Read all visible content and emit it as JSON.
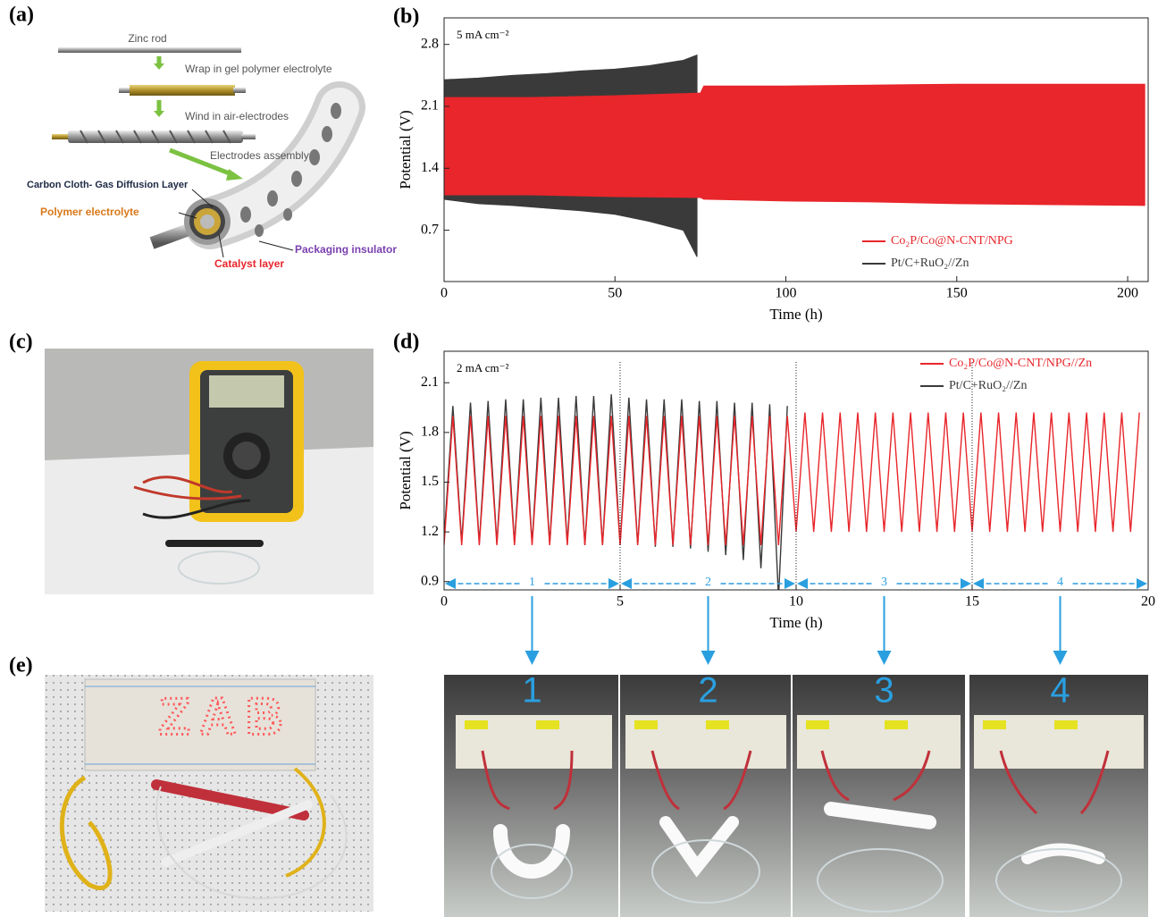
{
  "panel_labels": [
    "(a)",
    "(b)",
    "(c)",
    "(d)",
    "(e)"
  ],
  "schematic": {
    "steps": [
      "Zinc rod",
      "Wrap in gel polymer electrolyte",
      "Wind in air-electrodes",
      "Electrodes assembly"
    ],
    "layers": [
      "Carbon Cloth- Gas Diffusion Layer",
      "Polymer electrolyte",
      "Packaging insulator",
      "Catalyst layer"
    ]
  },
  "chart_data": [
    {
      "type": "band",
      "annotation": "5 mA cm⁻²",
      "x_label": "Time (h)",
      "y_label": "Potential (V)",
      "xlim": [
        0,
        206
      ],
      "ylim": [
        0.12,
        3.1
      ],
      "xticks": [
        0,
        50,
        100,
        150,
        200
      ],
      "yticks": [
        0.7,
        1.4,
        2.1,
        2.8
      ],
      "legend": "lower right",
      "series": [
        {
          "name": "Pt/C+RuO₂//Zn",
          "color": "#3a3a3a",
          "x": [
            0,
            10,
            20,
            30,
            40,
            50,
            60,
            70,
            74
          ],
          "upper": [
            2.4,
            2.42,
            2.45,
            2.47,
            2.5,
            2.52,
            2.56,
            2.62,
            2.68
          ],
          "lower": [
            1.05,
            1.0,
            0.98,
            0.95,
            0.92,
            0.88,
            0.8,
            0.7,
            0.4
          ]
        },
        {
          "name": "Co₂P/Co@N-CNT/NPG",
          "color": "#e8262b",
          "x": [
            0,
            25,
            50,
            75,
            76,
            100,
            125,
            150,
            175,
            205
          ],
          "upper": [
            2.2,
            2.2,
            2.22,
            2.25,
            2.33,
            2.33,
            2.34,
            2.35,
            2.35,
            2.35
          ],
          "lower": [
            1.1,
            1.1,
            1.08,
            1.07,
            1.05,
            1.03,
            1.02,
            1.0,
            0.99,
            0.98
          ]
        }
      ]
    },
    {
      "type": "line",
      "annotation": "2 mA cm⁻²",
      "x_label": "Time (h)",
      "y_label": "Potential (V)",
      "xlim": [
        0,
        20
      ],
      "ylim": [
        0.85,
        2.29
      ],
      "xticks": [
        0,
        5,
        10,
        15,
        20
      ],
      "yticks": [
        0.9,
        1.2,
        1.5,
        1.8,
        2.1
      ],
      "legend": "upper right",
      "dividers": [
        5,
        10,
        15
      ],
      "segments": [
        {
          "label": "1",
          "range": [
            0,
            5
          ]
        },
        {
          "label": "2",
          "range": [
            5,
            10
          ]
        },
        {
          "label": "3",
          "range": [
            10,
            15
          ]
        },
        {
          "label": "4",
          "range": [
            15,
            20
          ]
        }
      ],
      "series": [
        {
          "name": "Pt/C+RuO₂//Zn",
          "color": "#3a3a3a",
          "x": [
            0,
            0.25,
            0.5,
            0.75,
            1,
            1.25,
            1.5,
            1.75,
            2,
            2.25,
            2.5,
            2.75,
            3,
            3.25,
            3.5,
            3.75,
            4,
            4.25,
            4.5,
            4.75,
            5,
            5.25,
            5.5,
            5.75,
            6,
            6.25,
            6.5,
            6.75,
            7,
            7.25,
            7.5,
            7.75,
            8,
            8.25,
            8.5,
            8.75,
            9,
            9.25,
            9.5,
            9.75
          ],
          "values": [
            1.16,
            1.96,
            1.14,
            1.98,
            1.13,
            1.99,
            1.13,
            2.0,
            1.13,
            2.0,
            1.13,
            2.01,
            1.13,
            2.01,
            1.13,
            2.02,
            1.12,
            2.02,
            1.12,
            2.03,
            1.12,
            2.01,
            1.12,
            2.0,
            1.11,
            2.0,
            1.11,
            2.0,
            1.1,
            1.99,
            1.08,
            1.99,
            1.06,
            1.98,
            1.03,
            1.98,
            0.98,
            1.97,
            0.8,
            1.96
          ]
        },
        {
          "name": "Co₂P/Co@N-CNT/NPG//Zn",
          "color": "#e8262b",
          "x": [
            0,
            0.25,
            0.5,
            0.75,
            1,
            1.25,
            1.5,
            1.75,
            2,
            2.25,
            2.5,
            2.75,
            3,
            3.25,
            3.5,
            3.75,
            4,
            4.25,
            4.5,
            4.75,
            5,
            5.25,
            5.5,
            5.75,
            6,
            6.25,
            6.5,
            6.75,
            7,
            7.25,
            7.5,
            7.75,
            8,
            8.25,
            8.5,
            8.75,
            9,
            9.25,
            9.5,
            9.75,
            10,
            10.25,
            10.5,
            10.75,
            11,
            11.25,
            11.5,
            11.75,
            12,
            12.25,
            12.5,
            12.75,
            13,
            13.25,
            13.5,
            13.75,
            14,
            14.25,
            14.5,
            14.75,
            15,
            15.25,
            15.5,
            15.75,
            16,
            16.25,
            16.5,
            16.75,
            17,
            17.25,
            17.5,
            17.75,
            18,
            18.25,
            18.5,
            18.75,
            19,
            19.25,
            19.5,
            19.75
          ],
          "values": [
            1.12,
            1.9,
            1.12,
            1.9,
            1.12,
            1.9,
            1.12,
            1.9,
            1.12,
            1.9,
            1.12,
            1.9,
            1.12,
            1.9,
            1.12,
            1.9,
            1.12,
            1.9,
            1.12,
            1.9,
            1.12,
            1.9,
            1.12,
            1.9,
            1.12,
            1.9,
            1.12,
            1.9,
            1.12,
            1.9,
            1.12,
            1.9,
            1.12,
            1.9,
            1.12,
            1.9,
            1.12,
            1.9,
            1.12,
            1.9,
            1.2,
            1.92,
            1.2,
            1.92,
            1.2,
            1.92,
            1.2,
            1.92,
            1.2,
            1.92,
            1.2,
            1.92,
            1.2,
            1.92,
            1.2,
            1.92,
            1.2,
            1.92,
            1.2,
            1.92,
            1.2,
            1.92,
            1.2,
            1.92,
            1.2,
            1.92,
            1.2,
            1.92,
            1.2,
            1.92,
            1.2,
            1.92,
            1.2,
            1.92,
            1.2,
            1.92,
            1.2,
            1.92,
            1.2,
            1.92
          ]
        }
      ]
    }
  ],
  "photos": {
    "led_text": "ZAB",
    "stage_labels": [
      "1",
      "2",
      "3",
      "4"
    ]
  }
}
